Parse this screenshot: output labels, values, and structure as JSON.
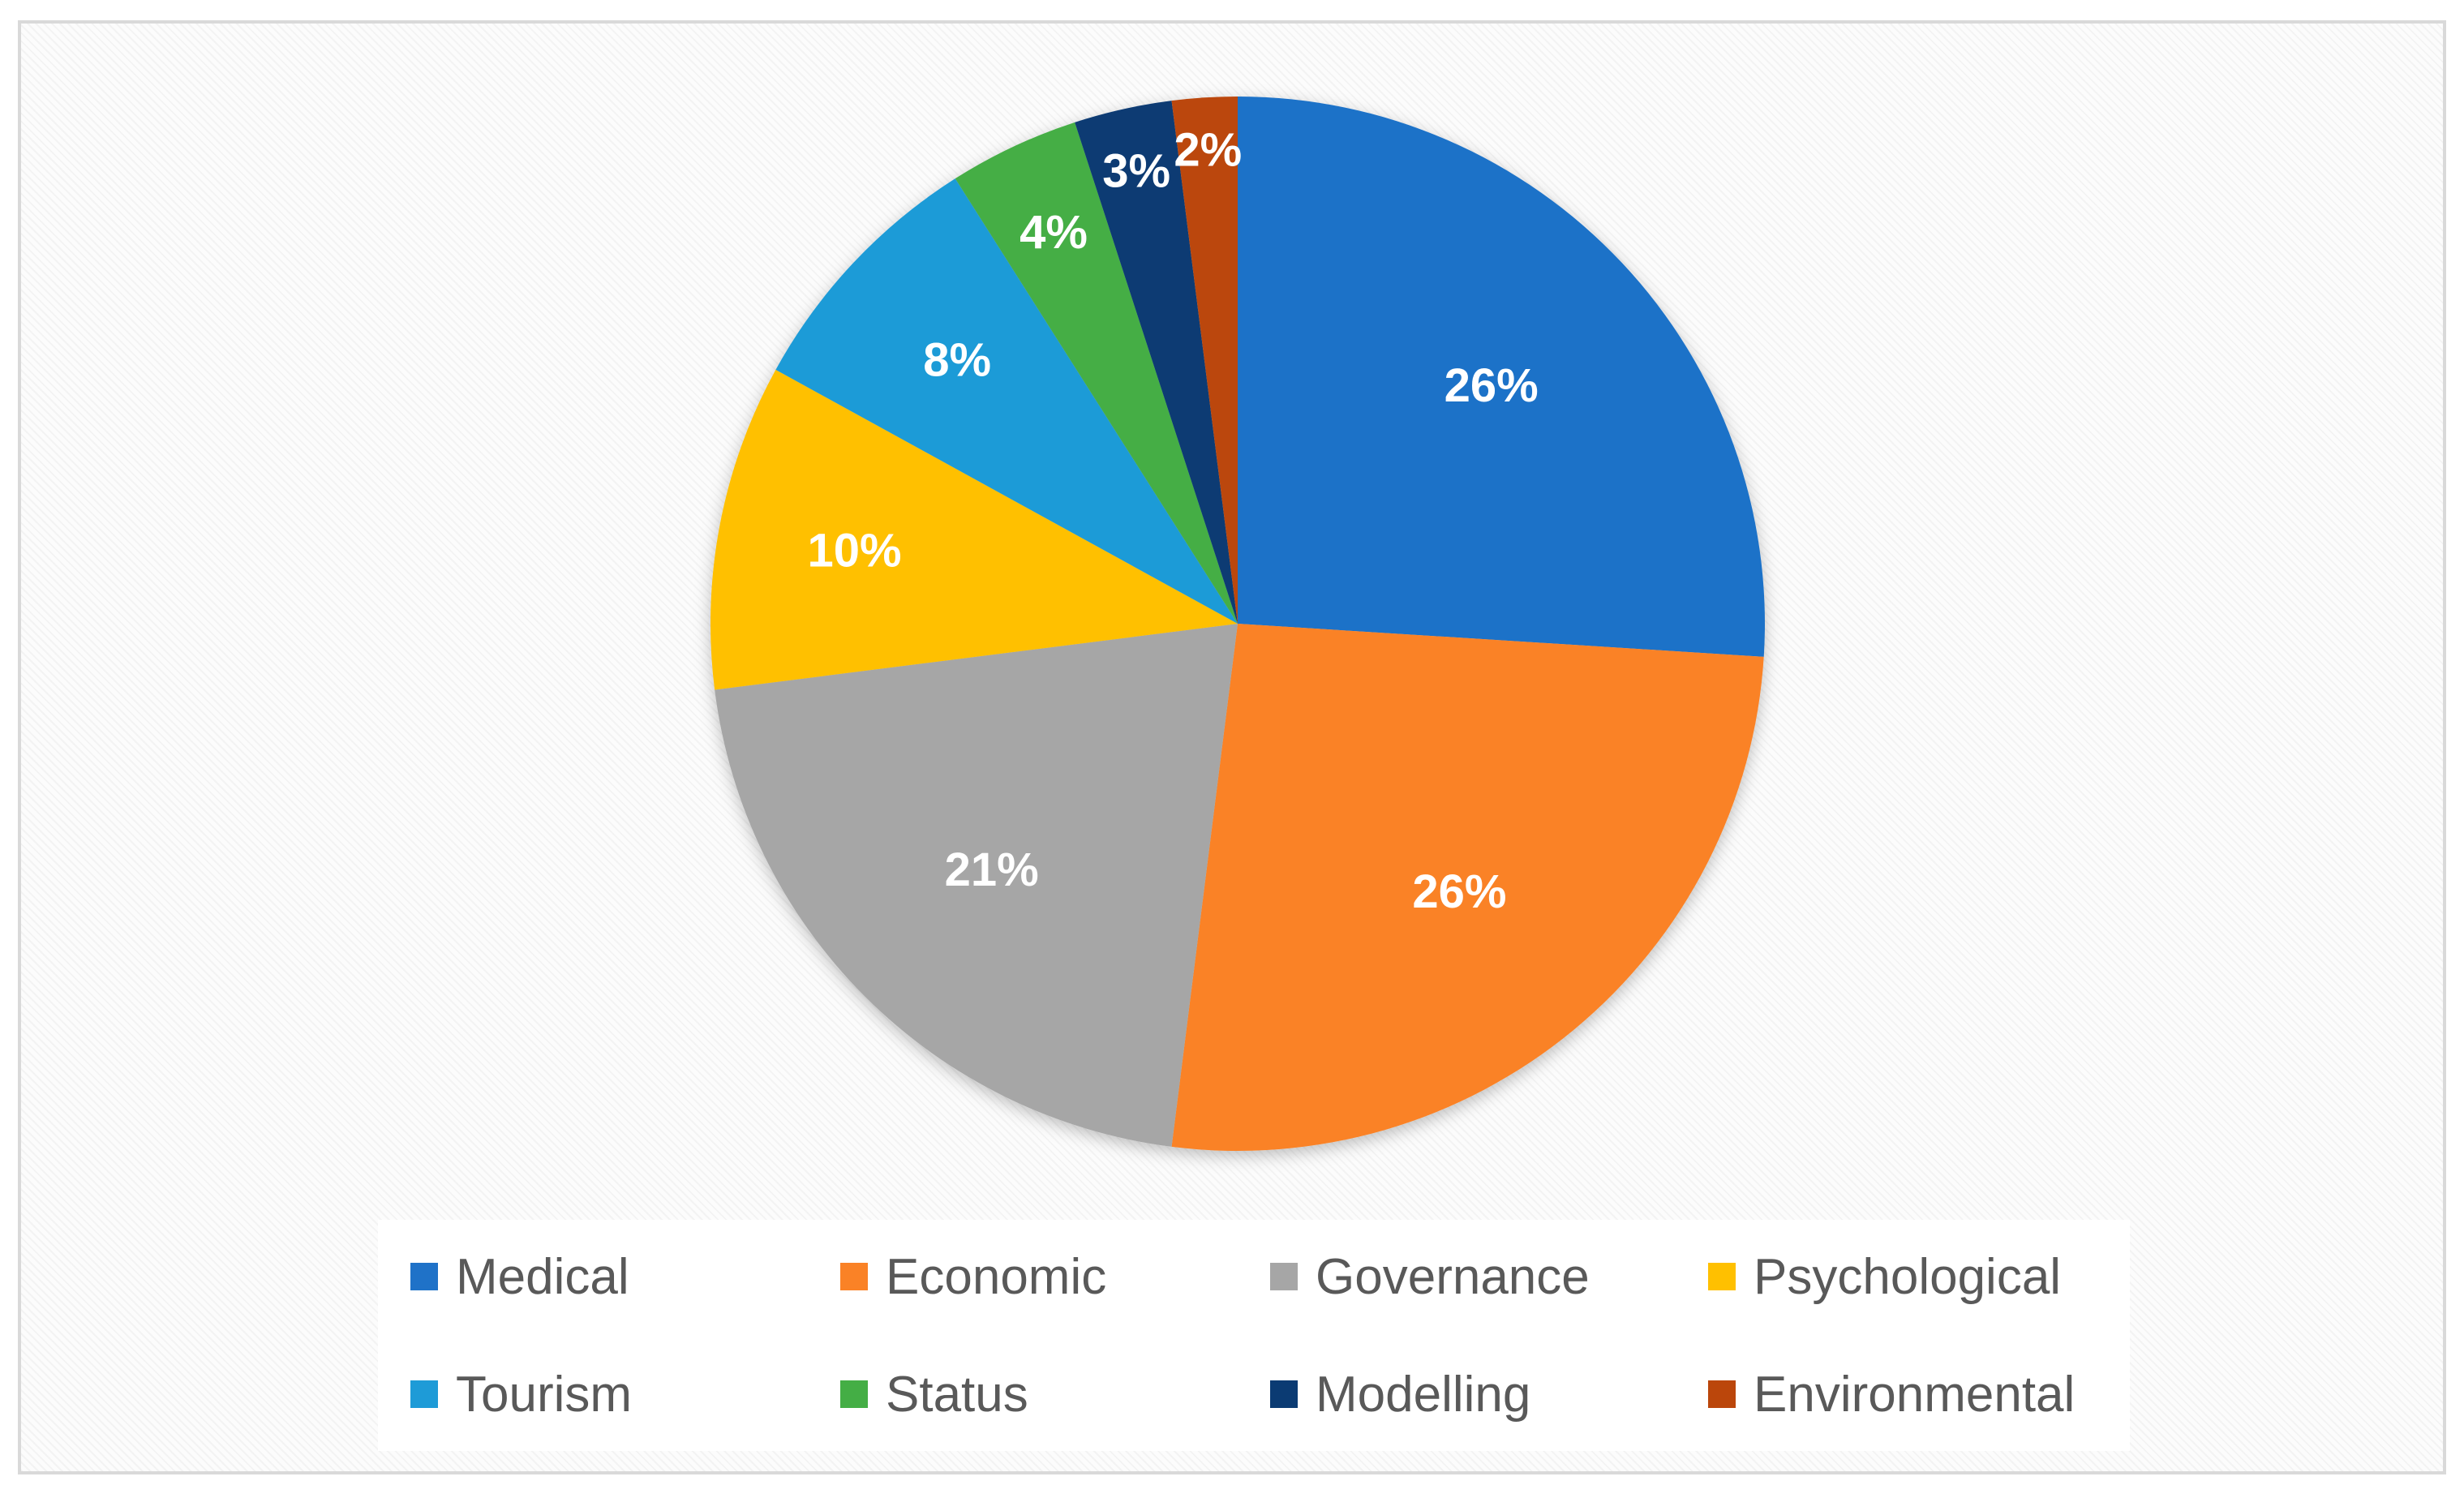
{
  "chart_data": {
    "type": "pie",
    "title": "",
    "categories": [
      "Medical",
      "Economic",
      "Governance",
      "Psychological",
      "Tourism",
      "Status",
      "Modelling",
      "Environmental"
    ],
    "values": [
      26,
      26,
      21,
      10,
      8,
      4,
      3,
      2
    ],
    "data_labels": [
      "26%",
      "26%",
      "21%",
      "10%",
      "8%",
      "4%",
      "3%",
      "2%"
    ],
    "colors": [
      "#1f72c8",
      "#fa8226",
      "#a6a6a6",
      "#ffc000",
      "#1e9bd7",
      "#44ae45",
      "#0b3b73",
      "#bb460b"
    ],
    "start_angle_deg": 0,
    "direction": "clockwise",
    "legend": {
      "position": "bottom",
      "entries": [
        "Medical",
        "Economic",
        "Governance",
        "Psychological",
        "Tourism",
        "Status",
        "Modelling",
        "Environmental"
      ]
    }
  }
}
